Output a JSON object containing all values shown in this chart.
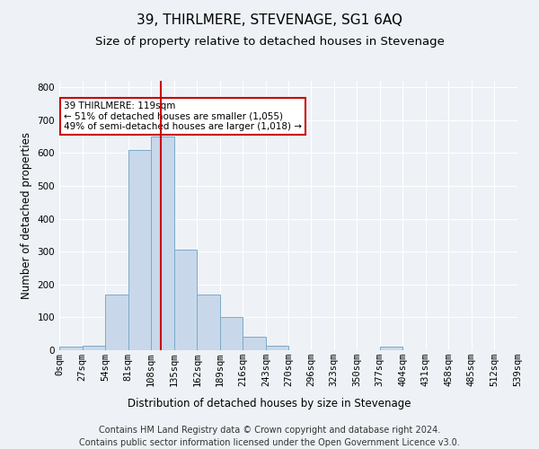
{
  "title": "39, THIRLMERE, STEVENAGE, SG1 6AQ",
  "subtitle": "Size of property relative to detached houses in Stevenage",
  "xlabel": "Distribution of detached houses by size in Stevenage",
  "ylabel": "Number of detached properties",
  "footer_line1": "Contains HM Land Registry data © Crown copyright and database right 2024.",
  "footer_line2": "Contains public sector information licensed under the Open Government Licence v3.0.",
  "bin_labels": [
    "0sqm",
    "27sqm",
    "54sqm",
    "81sqm",
    "108sqm",
    "135sqm",
    "162sqm",
    "189sqm",
    "216sqm",
    "243sqm",
    "270sqm",
    "296sqm",
    "323sqm",
    "350sqm",
    "377sqm",
    "404sqm",
    "431sqm",
    "458sqm",
    "485sqm",
    "512sqm",
    "539sqm"
  ],
  "bar_heights": [
    10,
    15,
    170,
    610,
    650,
    305,
    170,
    100,
    40,
    15,
    0,
    0,
    0,
    0,
    10,
    0,
    0,
    0,
    0,
    0
  ],
  "bin_edges": [
    0,
    27,
    54,
    81,
    108,
    135,
    162,
    189,
    216,
    243,
    270,
    296,
    323,
    350,
    377,
    404,
    431,
    458,
    485,
    512,
    539
  ],
  "bar_color": "#c8d8ea",
  "bar_edge_color": "#7aaac8",
  "bar_linewidth": 0.7,
  "property_size": 119,
  "property_line_color": "#cc0000",
  "annotation_text": "39 THIRLMERE: 119sqm\n← 51% of detached houses are smaller (1,055)\n49% of semi-detached houses are larger (1,018) →",
  "annotation_box_color": "#ffffff",
  "annotation_box_edge_color": "#cc0000",
  "ylim": [
    0,
    820
  ],
  "yticks": [
    0,
    100,
    200,
    300,
    400,
    500,
    600,
    700,
    800
  ],
  "background_color": "#eef2f6",
  "grid_color": "#ffffff",
  "title_fontsize": 11,
  "subtitle_fontsize": 9.5,
  "axis_label_fontsize": 8.5,
  "tick_fontsize": 7.5,
  "footer_fontsize": 7
}
